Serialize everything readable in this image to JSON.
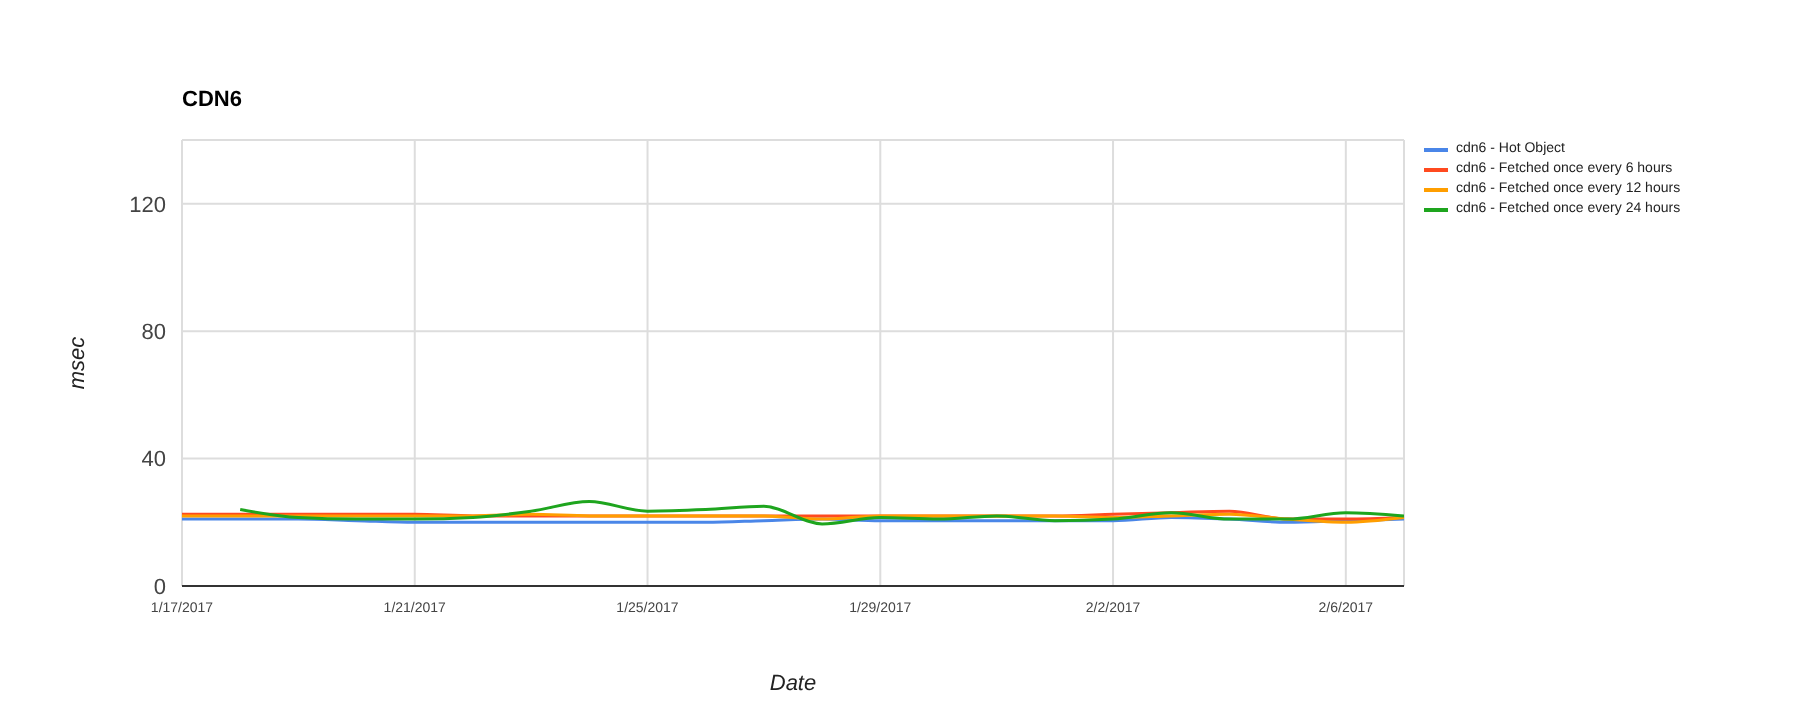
{
  "chart_data": {
    "type": "line",
    "title": "CDN6",
    "xlabel": "Date",
    "ylabel": "msec",
    "x": [
      "2017-01-17",
      "2017-01-18",
      "2017-01-19",
      "2017-01-20",
      "2017-01-21",
      "2017-01-22",
      "2017-01-23",
      "2017-01-24",
      "2017-01-25",
      "2017-01-26",
      "2017-01-27",
      "2017-01-28",
      "2017-01-29",
      "2017-01-30",
      "2017-01-31",
      "2017-02-01",
      "2017-02-02",
      "2017-02-03",
      "2017-02-04",
      "2017-02-05",
      "2017-02-06",
      "2017-02-07"
    ],
    "series": [
      {
        "name": "cdn6 - Hot Object",
        "color": "#4a86e8",
        "values": [
          21,
          21,
          21,
          20.5,
          20,
          20,
          20,
          20,
          20,
          20,
          20.5,
          21,
          20.5,
          20.5,
          20.5,
          20.5,
          20.5,
          21.5,
          21,
          20,
          20.5,
          21
        ]
      },
      {
        "name": "cdn6 - Fetched once every 6 hours",
        "color": "#ff4a1f",
        "values": [
          22.5,
          22.5,
          22.5,
          22.5,
          22.5,
          22,
          22,
          22,
          22,
          22,
          22,
          22,
          22,
          22,
          22,
          22,
          22.5,
          23,
          23.5,
          21,
          21,
          21.5
        ]
      },
      {
        "name": "cdn6 - Fetched once every 12 hours",
        "color": "#ff9e00",
        "values": [
          22,
          22,
          22,
          22,
          22,
          22,
          22.5,
          22,
          22,
          22,
          22,
          21,
          22,
          22,
          22,
          22,
          21.5,
          22,
          22.5,
          21,
          20,
          21.5
        ]
      },
      {
        "name": "cdn6 - Fetched once every 24 hours",
        "color": "#1ea51e",
        "values": [
          null,
          24,
          21.5,
          21,
          21,
          21.5,
          23.5,
          26.5,
          23.5,
          24,
          25,
          19.5,
          21.5,
          21,
          22,
          20.5,
          21,
          23,
          21,
          21,
          23,
          22
        ]
      }
    ],
    "xlim": [
      "2017-01-17",
      "2017-02-07"
    ],
    "xticks": [
      {
        "value": "2017-01-17",
        "label": "1/17/2017"
      },
      {
        "value": "2017-01-21",
        "label": "1/21/2017"
      },
      {
        "value": "2017-01-25",
        "label": "1/25/2017"
      },
      {
        "value": "2017-01-29",
        "label": "1/29/2017"
      },
      {
        "value": "2017-02-02",
        "label": "2/2/2017"
      },
      {
        "value": "2017-02-06",
        "label": "2/6/2017"
      }
    ],
    "ylim": [
      0,
      140
    ],
    "yticks": [
      0,
      40,
      80,
      120
    ],
    "grid": true,
    "legend": "top right",
    "line_style": "solid"
  }
}
